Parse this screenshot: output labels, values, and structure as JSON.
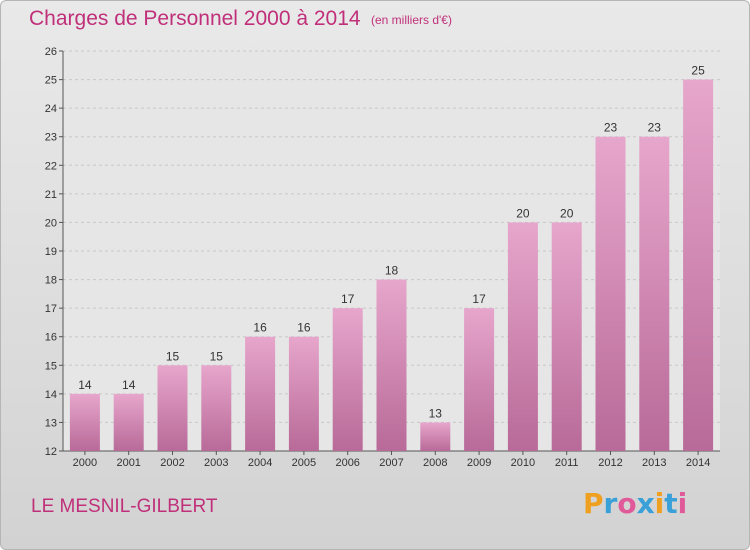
{
  "title": "Charges de Personnel 2000 à 2014",
  "subtitle": "(en milliers d'€)",
  "commune": "LE MESNIL-GILBERT",
  "brand": {
    "letters": [
      "P",
      "r",
      "o",
      "x",
      "i",
      "t",
      "i"
    ],
    "colors": [
      "#f0a020",
      "#3aa0d8",
      "#e05a9a",
      "#3aa0d8",
      "#f0a020",
      "#3aa0d8",
      "#e05a9a"
    ]
  },
  "colors": {
    "bar_top": "#e7a6cc",
    "bar_bottom": "#b86a98",
    "text_accent": "#c0307a"
  },
  "chart_data": {
    "type": "bar",
    "title": "Charges de Personnel 2000 à 2014",
    "subtitle": "(en milliers d'€)",
    "categories": [
      "2000",
      "2001",
      "2002",
      "2003",
      "2004",
      "2005",
      "2006",
      "2007",
      "2008",
      "2009",
      "2010",
      "2011",
      "2012",
      "2013",
      "2014"
    ],
    "values": [
      14,
      14,
      15,
      15,
      16,
      16,
      17,
      18,
      13,
      17,
      20,
      20,
      23,
      23,
      25
    ],
    "ylim": [
      12,
      26
    ],
    "yticks": [
      12,
      13,
      14,
      15,
      16,
      17,
      18,
      19,
      20,
      21,
      22,
      23,
      24,
      25,
      26
    ],
    "grid": true,
    "xlabel": "",
    "ylabel": ""
  }
}
